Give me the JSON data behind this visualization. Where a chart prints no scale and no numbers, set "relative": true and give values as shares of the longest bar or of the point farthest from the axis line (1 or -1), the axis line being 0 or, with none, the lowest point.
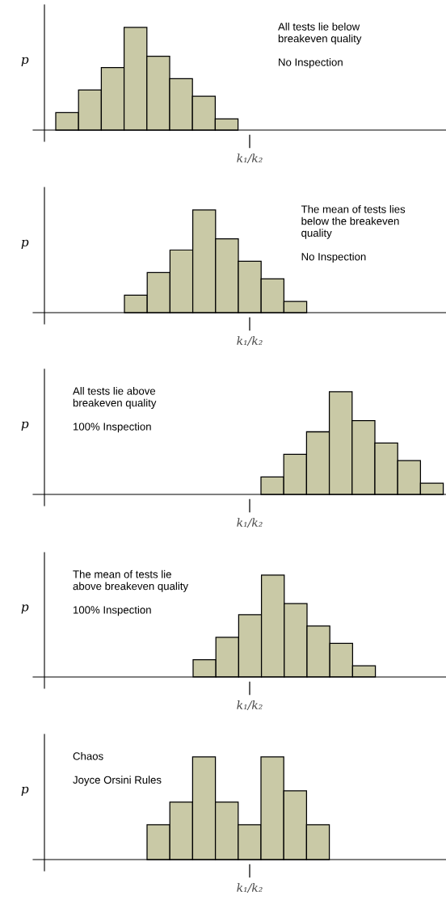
{
  "chart_data": [
    {
      "type": "bar",
      "relative": true,
      "ylabel": "p",
      "categories": [
        null,
        null,
        null,
        null,
        null,
        null,
        null,
        null
      ],
      "values": [
        0.17,
        0.39,
        0.61,
        1,
        0.72,
        0.5,
        0.33,
        0.11
      ],
      "color": "#c9c9a6",
      "annotations": [
        "All tests lie below\nbreakeven quality\n\nNo Inspection",
        "k₁/k₂"
      ]
    },
    {
      "type": "bar",
      "relative": true,
      "ylabel": "p",
      "categories": [
        null,
        null,
        null,
        null,
        null,
        null,
        null,
        null
      ],
      "values": [
        0.17,
        0.39,
        0.61,
        1,
        0.72,
        0.5,
        0.33,
        0.11
      ],
      "color": "#c9c9a6",
      "annotations": [
        "The mean of tests lies\nbelow the breakeven\nquality\n\nNo Inspection",
        "k₁/k₂"
      ]
    },
    {
      "type": "bar",
      "relative": true,
      "ylabel": "p",
      "categories": [
        null,
        null,
        null,
        null,
        null,
        null,
        null,
        null
      ],
      "values": [
        0.17,
        0.39,
        0.61,
        1,
        0.72,
        0.5,
        0.33,
        0.11
      ],
      "color": "#c9c9a6",
      "annotations": [
        "All tests lie above\nbreakeven quality\n\n100% Inspection",
        "k₁/k₂"
      ]
    },
    {
      "type": "bar",
      "relative": true,
      "ylabel": "p",
      "categories": [
        null,
        null,
        null,
        null,
        null,
        null,
        null,
        null
      ],
      "values": [
        0.17,
        0.39,
        0.61,
        1,
        0.72,
        0.5,
        0.33,
        0.11
      ],
      "color": "#c9c9a6",
      "annotations": [
        "The mean of tests lie\nabove breakeven quality\n\n100% Inspection",
        "k₁/k₂"
      ]
    },
    {
      "type": "bar",
      "relative": true,
      "ylabel": "p",
      "categories": [
        null,
        null,
        null,
        null,
        null,
        null,
        null,
        null
      ],
      "values": [
        0.34,
        0.56,
        1,
        0.56,
        0.34,
        1,
        0.67,
        0.34
      ],
      "color": "#c9c9a6",
      "annotations": [
        "Chaos\n\nJoyce Orsini Rules",
        "k₁/k₂"
      ]
    }
  ]
}
